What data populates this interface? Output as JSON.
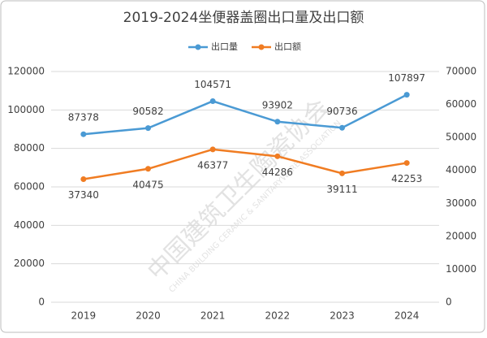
{
  "chart_data": {
    "type": "line",
    "title": "2019-2024坐便器盖圈出口量及出口额",
    "categories": [
      "2019",
      "2020",
      "2021",
      "2022",
      "2023",
      "2024"
    ],
    "series": [
      {
        "name": "出口量",
        "color": "#4a9ad4",
        "values": [
          87378,
          90582,
          104571,
          93902,
          90736,
          107897
        ]
      },
      {
        "name": "出口额",
        "color": "#f07c22",
        "axis": "y2",
        "values": [
          37340,
          40475,
          46377,
          44286,
          39111,
          42253
        ]
      }
    ],
    "ylim": [
      0,
      120000
    ],
    "yticks": [
      0,
      20000,
      40000,
      60000,
      80000,
      100000,
      120000
    ],
    "y2lim": [
      0,
      70000
    ],
    "y2ticks": [
      0,
      10000,
      20000,
      30000,
      40000,
      50000,
      60000,
      70000
    ],
    "grid": true,
    "legend": "top",
    "watermark": "中国建筑卫生陶瓷协会",
    "watermark_subtitle": "CHINA BUILDING CERAMIC & SANITARYWARE ASSOCIATION"
  }
}
